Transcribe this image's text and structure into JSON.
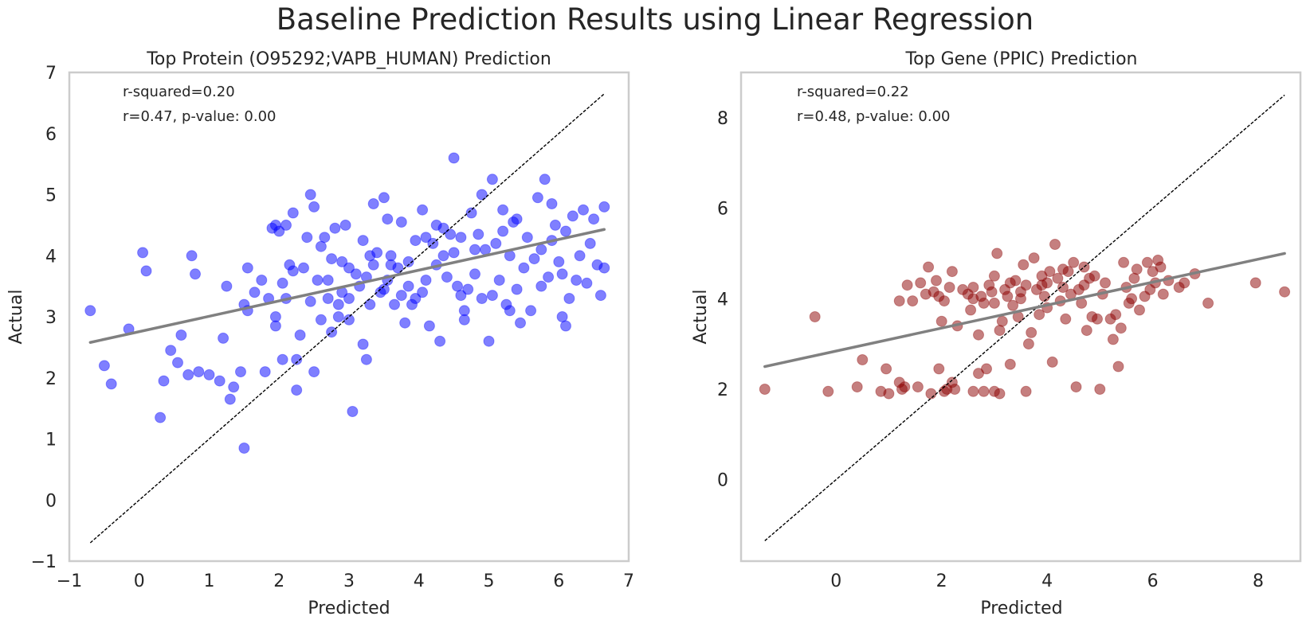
{
  "figure": {
    "suptitle": "Baseline Prediction Results using Linear Regression"
  },
  "chart_data": [
    {
      "type": "scatter",
      "title": "Top Protein (O95292;VAPB_HUMAN) Prediction",
      "xlabel": "Predicted",
      "ylabel": "Actual",
      "xlim": [
        -1,
        7
      ],
      "ylim": [
        -1,
        7
      ],
      "xticks": [
        -1,
        0,
        1,
        2,
        3,
        4,
        5,
        6,
        7
      ],
      "xtick_labels": [
        "−1",
        "0",
        "1",
        "2",
        "3",
        "4",
        "5",
        "6",
        "7"
      ],
      "yticks": [
        -1,
        0,
        1,
        2,
        3,
        4,
        5,
        6,
        7
      ],
      "ytick_labels": [
        "−1",
        "0",
        "1",
        "2",
        "3",
        "4",
        "5",
        "6",
        "7"
      ],
      "grid": false,
      "annotations": [
        "r-squared=0.20",
        "r=0.47, p-value: 0.00"
      ],
      "point_color": "#0000ff",
      "point_opacity": 0.5,
      "identity_line": {
        "x": [
          -0.7,
          6.65
        ],
        "y": [
          -0.7,
          6.65
        ],
        "color": "#000000",
        "style": "dashed"
      },
      "fit_line": {
        "x": [
          -0.7,
          6.65
        ],
        "y": [
          2.58,
          4.43
        ],
        "color": "#808080"
      },
      "points": [
        [
          -0.7,
          3.1
        ],
        [
          -0.5,
          2.2
        ],
        [
          -0.4,
          1.9
        ],
        [
          -0.15,
          2.8
        ],
        [
          0.05,
          4.05
        ],
        [
          0.1,
          3.75
        ],
        [
          0.3,
          1.35
        ],
        [
          0.35,
          1.95
        ],
        [
          0.45,
          2.45
        ],
        [
          0.55,
          2.25
        ],
        [
          0.6,
          2.7
        ],
        [
          0.7,
          2.05
        ],
        [
          0.75,
          4.0
        ],
        [
          0.8,
          3.7
        ],
        [
          0.85,
          2.1
        ],
        [
          1.0,
          2.05
        ],
        [
          1.15,
          1.95
        ],
        [
          1.2,
          2.65
        ],
        [
          1.25,
          3.5
        ],
        [
          1.3,
          1.65
        ],
        [
          1.35,
          1.85
        ],
        [
          1.45,
          2.1
        ],
        [
          1.5,
          3.2
        ],
        [
          1.55,
          3.1
        ],
        [
          1.55,
          3.8
        ],
        [
          1.65,
          3.4
        ],
        [
          1.75,
          3.6
        ],
        [
          1.8,
          2.1
        ],
        [
          1.85,
          3.3
        ],
        [
          1.9,
          4.45
        ],
        [
          1.95,
          4.5
        ],
        [
          1.95,
          2.85
        ],
        [
          1.95,
          3.0
        ],
        [
          2.0,
          4.4
        ],
        [
          2.05,
          2.3
        ],
        [
          2.05,
          3.55
        ],
        [
          2.1,
          4.5
        ],
        [
          2.1,
          3.3
        ],
        [
          2.15,
          3.85
        ],
        [
          2.2,
          4.7
        ],
        [
          2.2,
          3.75
        ],
        [
          2.25,
          1.8
        ],
        [
          2.3,
          2.7
        ],
        [
          2.35,
          3.8
        ],
        [
          2.4,
          4.3
        ],
        [
          2.45,
          5.0
        ],
        [
          2.45,
          3.25
        ],
        [
          2.5,
          2.1
        ],
        [
          2.5,
          4.8
        ],
        [
          2.55,
          3.6
        ],
        [
          2.6,
          2.95
        ],
        [
          2.6,
          4.15
        ],
        [
          2.65,
          4.3
        ],
        [
          2.7,
          3.3
        ],
        [
          2.7,
          3.6
        ],
        [
          2.75,
          2.75
        ],
        [
          2.75,
          3.95
        ],
        [
          2.8,
          4.45
        ],
        [
          2.85,
          3.2
        ],
        [
          2.85,
          3.0
        ],
        [
          2.9,
          3.4
        ],
        [
          2.9,
          3.9
        ],
        [
          3.0,
          3.3
        ],
        [
          3.0,
          3.8
        ],
        [
          3.05,
          1.45
        ],
        [
          3.1,
          3.7
        ],
        [
          3.15,
          3.5
        ],
        [
          3.2,
          4.25
        ],
        [
          3.2,
          2.55
        ],
        [
          3.25,
          2.3
        ],
        [
          3.3,
          4.0
        ],
        [
          3.3,
          3.2
        ],
        [
          3.35,
          4.85
        ],
        [
          3.35,
          3.85
        ],
        [
          3.4,
          4.05
        ],
        [
          3.45,
          3.4
        ],
        [
          3.5,
          4.95
        ],
        [
          3.5,
          3.45
        ],
        [
          3.55,
          3.6
        ],
        [
          3.6,
          4.0
        ],
        [
          3.65,
          3.2
        ],
        [
          3.7,
          3.8
        ],
        [
          3.75,
          4.55
        ],
        [
          3.75,
          3.35
        ],
        [
          3.8,
          2.9
        ],
        [
          3.85,
          3.5
        ],
        [
          3.85,
          3.9
        ],
        [
          3.9,
          3.2
        ],
        [
          3.95,
          3.3
        ],
        [
          4.05,
          3.4
        ],
        [
          4.05,
          4.75
        ],
        [
          4.1,
          4.3
        ],
        [
          4.15,
          2.85
        ],
        [
          4.2,
          4.2
        ],
        [
          4.25,
          3.85
        ],
        [
          4.25,
          4.5
        ],
        [
          4.3,
          2.6
        ],
        [
          4.35,
          4.0
        ],
        [
          4.4,
          3.65
        ],
        [
          4.45,
          4.35
        ],
        [
          4.5,
          5.6
        ],
        [
          4.5,
          4.05
        ],
        [
          4.55,
          3.5
        ],
        [
          4.6,
          4.3
        ],
        [
          4.65,
          2.95
        ],
        [
          4.65,
          3.1
        ],
        [
          4.7,
          3.45
        ],
        [
          4.75,
          4.7
        ],
        [
          4.8,
          3.7
        ],
        [
          4.85,
          4.35
        ],
        [
          4.9,
          3.3
        ],
        [
          4.95,
          4.1
        ],
        [
          5.0,
          2.6
        ],
        [
          5.05,
          3.35
        ],
        [
          5.1,
          4.2
        ],
        [
          5.15,
          3.6
        ],
        [
          5.2,
          4.4
        ],
        [
          5.25,
          3.2
        ],
        [
          5.3,
          4.0
        ],
        [
          5.35,
          4.55
        ],
        [
          5.4,
          3.45
        ],
        [
          5.45,
          2.9
        ],
        [
          5.5,
          3.8
        ],
        [
          5.55,
          4.3
        ],
        [
          5.6,
          3.1
        ],
        [
          5.65,
          3.95
        ],
        [
          5.7,
          4.95
        ],
        [
          5.75,
          3.5
        ],
        [
          5.8,
          5.25
        ],
        [
          5.85,
          3.65
        ],
        [
          5.9,
          4.25
        ],
        [
          5.95,
          4.5
        ],
        [
          6.0,
          3.9
        ],
        [
          6.05,
          3.0
        ],
        [
          6.1,
          4.4
        ],
        [
          6.15,
          3.3
        ],
        [
          6.2,
          4.65
        ],
        [
          6.25,
          3.6
        ],
        [
          6.3,
          4.0
        ],
        [
          6.35,
          4.75
        ],
        [
          6.4,
          3.55
        ],
        [
          6.45,
          4.2
        ],
        [
          6.5,
          4.6
        ],
        [
          6.55,
          3.85
        ],
        [
          6.6,
          3.35
        ],
        [
          6.65,
          4.8
        ],
        [
          6.65,
          3.8
        ],
        [
          6.1,
          2.85
        ],
        [
          5.9,
          4.85
        ],
        [
          4.9,
          5.0
        ],
        [
          5.05,
          5.25
        ],
        [
          5.4,
          4.6
        ],
        [
          5.2,
          4.75
        ],
        [
          3.55,
          4.6
        ],
        [
          3.25,
          3.65
        ],
        [
          4.35,
          4.45
        ],
        [
          3.0,
          2.95
        ],
        [
          2.25,
          2.3
        ],
        [
          1.5,
          0.85
        ],
        [
          3.95,
          4.25
        ],
        [
          4.6,
          3.35
        ],
        [
          5.75,
          4.1
        ],
        [
          6.05,
          3.7
        ],
        [
          5.3,
          3.1
        ],
        [
          4.1,
          3.6
        ],
        [
          3.6,
          3.85
        ],
        [
          2.95,
          4.5
        ],
        [
          4.8,
          4.1
        ]
      ]
    },
    {
      "type": "scatter",
      "title": "Top Gene (PPIC) Prediction",
      "xlabel": "Predicted",
      "ylabel": "Actual",
      "xlim": [
        -1.8,
        8.8
      ],
      "ylim": [
        -1.8,
        9.0
      ],
      "xticks": [
        0,
        2,
        4,
        6,
        8
      ],
      "xtick_labels": [
        "0",
        "2",
        "4",
        "6",
        "8"
      ],
      "yticks": [
        0,
        2,
        4,
        6,
        8
      ],
      "ytick_labels": [
        "0",
        "2",
        "4",
        "6",
        "8"
      ],
      "grid": false,
      "annotations": [
        "r-squared=0.22",
        "r=0.48, p-value: 0.00"
      ],
      "point_color": "#8b0000",
      "point_opacity": 0.5,
      "identity_line": {
        "x": [
          -1.35,
          8.5
        ],
        "y": [
          -1.35,
          8.5
        ],
        "color": "#000000",
        "style": "dashed"
      },
      "fit_line": {
        "x": [
          -1.35,
          8.5
        ],
        "y": [
          2.5,
          5.0
        ],
        "color": "#808080"
      },
      "points": [
        [
          -1.35,
          2.0
        ],
        [
          -0.4,
          3.6
        ],
        [
          -0.15,
          1.95
        ],
        [
          0.4,
          2.05
        ],
        [
          0.5,
          2.65
        ],
        [
          0.85,
          1.95
        ],
        [
          0.95,
          2.45
        ],
        [
          1.0,
          1.9
        ],
        [
          1.2,
          2.15
        ],
        [
          1.2,
          3.95
        ],
        [
          1.25,
          2.0
        ],
        [
          1.3,
          2.05
        ],
        [
          1.35,
          4.3
        ],
        [
          1.45,
          3.95
        ],
        [
          1.55,
          2.05
        ],
        [
          1.6,
          4.35
        ],
        [
          1.75,
          4.7
        ],
        [
          1.8,
          1.9
        ],
        [
          1.85,
          4.15
        ],
        [
          1.9,
          4.4
        ],
        [
          1.95,
          4.05
        ],
        [
          1.95,
          2.45
        ],
        [
          2.0,
          3.5
        ],
        [
          2.05,
          1.95
        ],
        [
          2.05,
          3.95
        ],
        [
          2.1,
          2.0
        ],
        [
          2.15,
          4.25
        ],
        [
          2.2,
          2.15
        ],
        [
          2.25,
          2.0
        ],
        [
          2.3,
          3.4
        ],
        [
          2.4,
          4.2
        ],
        [
          2.5,
          4.1
        ],
        [
          2.55,
          3.75
        ],
        [
          2.6,
          1.95
        ],
        [
          2.6,
          4.25
        ],
        [
          2.7,
          3.2
        ],
        [
          2.7,
          2.35
        ],
        [
          2.75,
          4.05
        ],
        [
          2.8,
          1.95
        ],
        [
          2.8,
          3.9
        ],
        [
          2.85,
          2.45
        ],
        [
          2.9,
          4.3
        ],
        [
          2.95,
          4.15
        ],
        [
          3.0,
          4.5
        ],
        [
          3.0,
          1.95
        ],
        [
          3.05,
          5.0
        ],
        [
          3.1,
          1.9
        ],
        [
          3.1,
          3.3
        ],
        [
          3.15,
          3.5
        ],
        [
          3.2,
          4.2
        ],
        [
          3.25,
          4.05
        ],
        [
          3.3,
          2.55
        ],
        [
          3.35,
          3.85
        ],
        [
          3.4,
          4.4
        ],
        [
          3.45,
          3.6
        ],
        [
          3.5,
          4.15
        ],
        [
          3.55,
          4.75
        ],
        [
          3.6,
          4.3
        ],
        [
          3.6,
          1.95
        ],
        [
          3.65,
          3.0
        ],
        [
          3.7,
          3.25
        ],
        [
          3.75,
          4.9
        ],
        [
          3.8,
          4.2
        ],
        [
          3.85,
          3.65
        ],
        [
          3.9,
          4.5
        ],
        [
          3.95,
          4.05
        ],
        [
          4.0,
          4.35
        ],
        [
          4.05,
          4.6
        ],
        [
          4.1,
          2.6
        ],
        [
          4.15,
          5.2
        ],
        [
          4.2,
          4.45
        ],
        [
          4.25,
          3.95
        ],
        [
          4.3,
          4.25
        ],
        [
          4.35,
          3.55
        ],
        [
          4.4,
          4.6
        ],
        [
          4.45,
          4.1
        ],
        [
          4.5,
          4.8
        ],
        [
          4.55,
          2.05
        ],
        [
          4.6,
          4.2
        ],
        [
          4.65,
          3.9
        ],
        [
          4.7,
          4.7
        ],
        [
          4.75,
          3.3
        ],
        [
          4.8,
          4.45
        ],
        [
          4.85,
          3.6
        ],
        [
          4.9,
          4.5
        ],
        [
          4.95,
          3.55
        ],
        [
          5.0,
          2.0
        ],
        [
          5.05,
          4.1
        ],
        [
          5.1,
          4.35
        ],
        [
          5.2,
          3.55
        ],
        [
          5.25,
          3.1
        ],
        [
          5.3,
          3.65
        ],
        [
          5.35,
          2.5
        ],
        [
          5.4,
          3.35
        ],
        [
          5.45,
          4.8
        ],
        [
          5.5,
          4.25
        ],
        [
          5.55,
          3.9
        ],
        [
          5.65,
          4.45
        ],
        [
          5.7,
          4.65
        ],
        [
          5.75,
          3.75
        ],
        [
          5.85,
          4.05
        ],
        [
          5.9,
          4.8
        ],
        [
          5.95,
          4.2
        ],
        [
          6.0,
          4.6
        ],
        [
          6.05,
          4.35
        ],
        [
          6.1,
          4.85
        ],
        [
          6.15,
          4.7
        ],
        [
          6.2,
          4.1
        ],
        [
          6.3,
          4.4
        ],
        [
          6.5,
          4.25
        ],
        [
          6.6,
          4.35
        ],
        [
          6.8,
          4.55
        ],
        [
          7.05,
          3.9
        ],
        [
          7.95,
          4.35
        ],
        [
          8.5,
          4.15
        ],
        [
          3.5,
          4.0
        ],
        [
          3.9,
          4.3
        ],
        [
          4.3,
          4.65
        ],
        [
          2.6,
          4.0
        ],
        [
          3.0,
          3.9
        ],
        [
          4.7,
          4.3
        ],
        [
          5.6,
          4.0
        ],
        [
          2.2,
          4.6
        ],
        [
          1.7,
          4.1
        ],
        [
          3.3,
          4.35
        ],
        [
          4.0,
          3.8
        ]
      ]
    }
  ]
}
